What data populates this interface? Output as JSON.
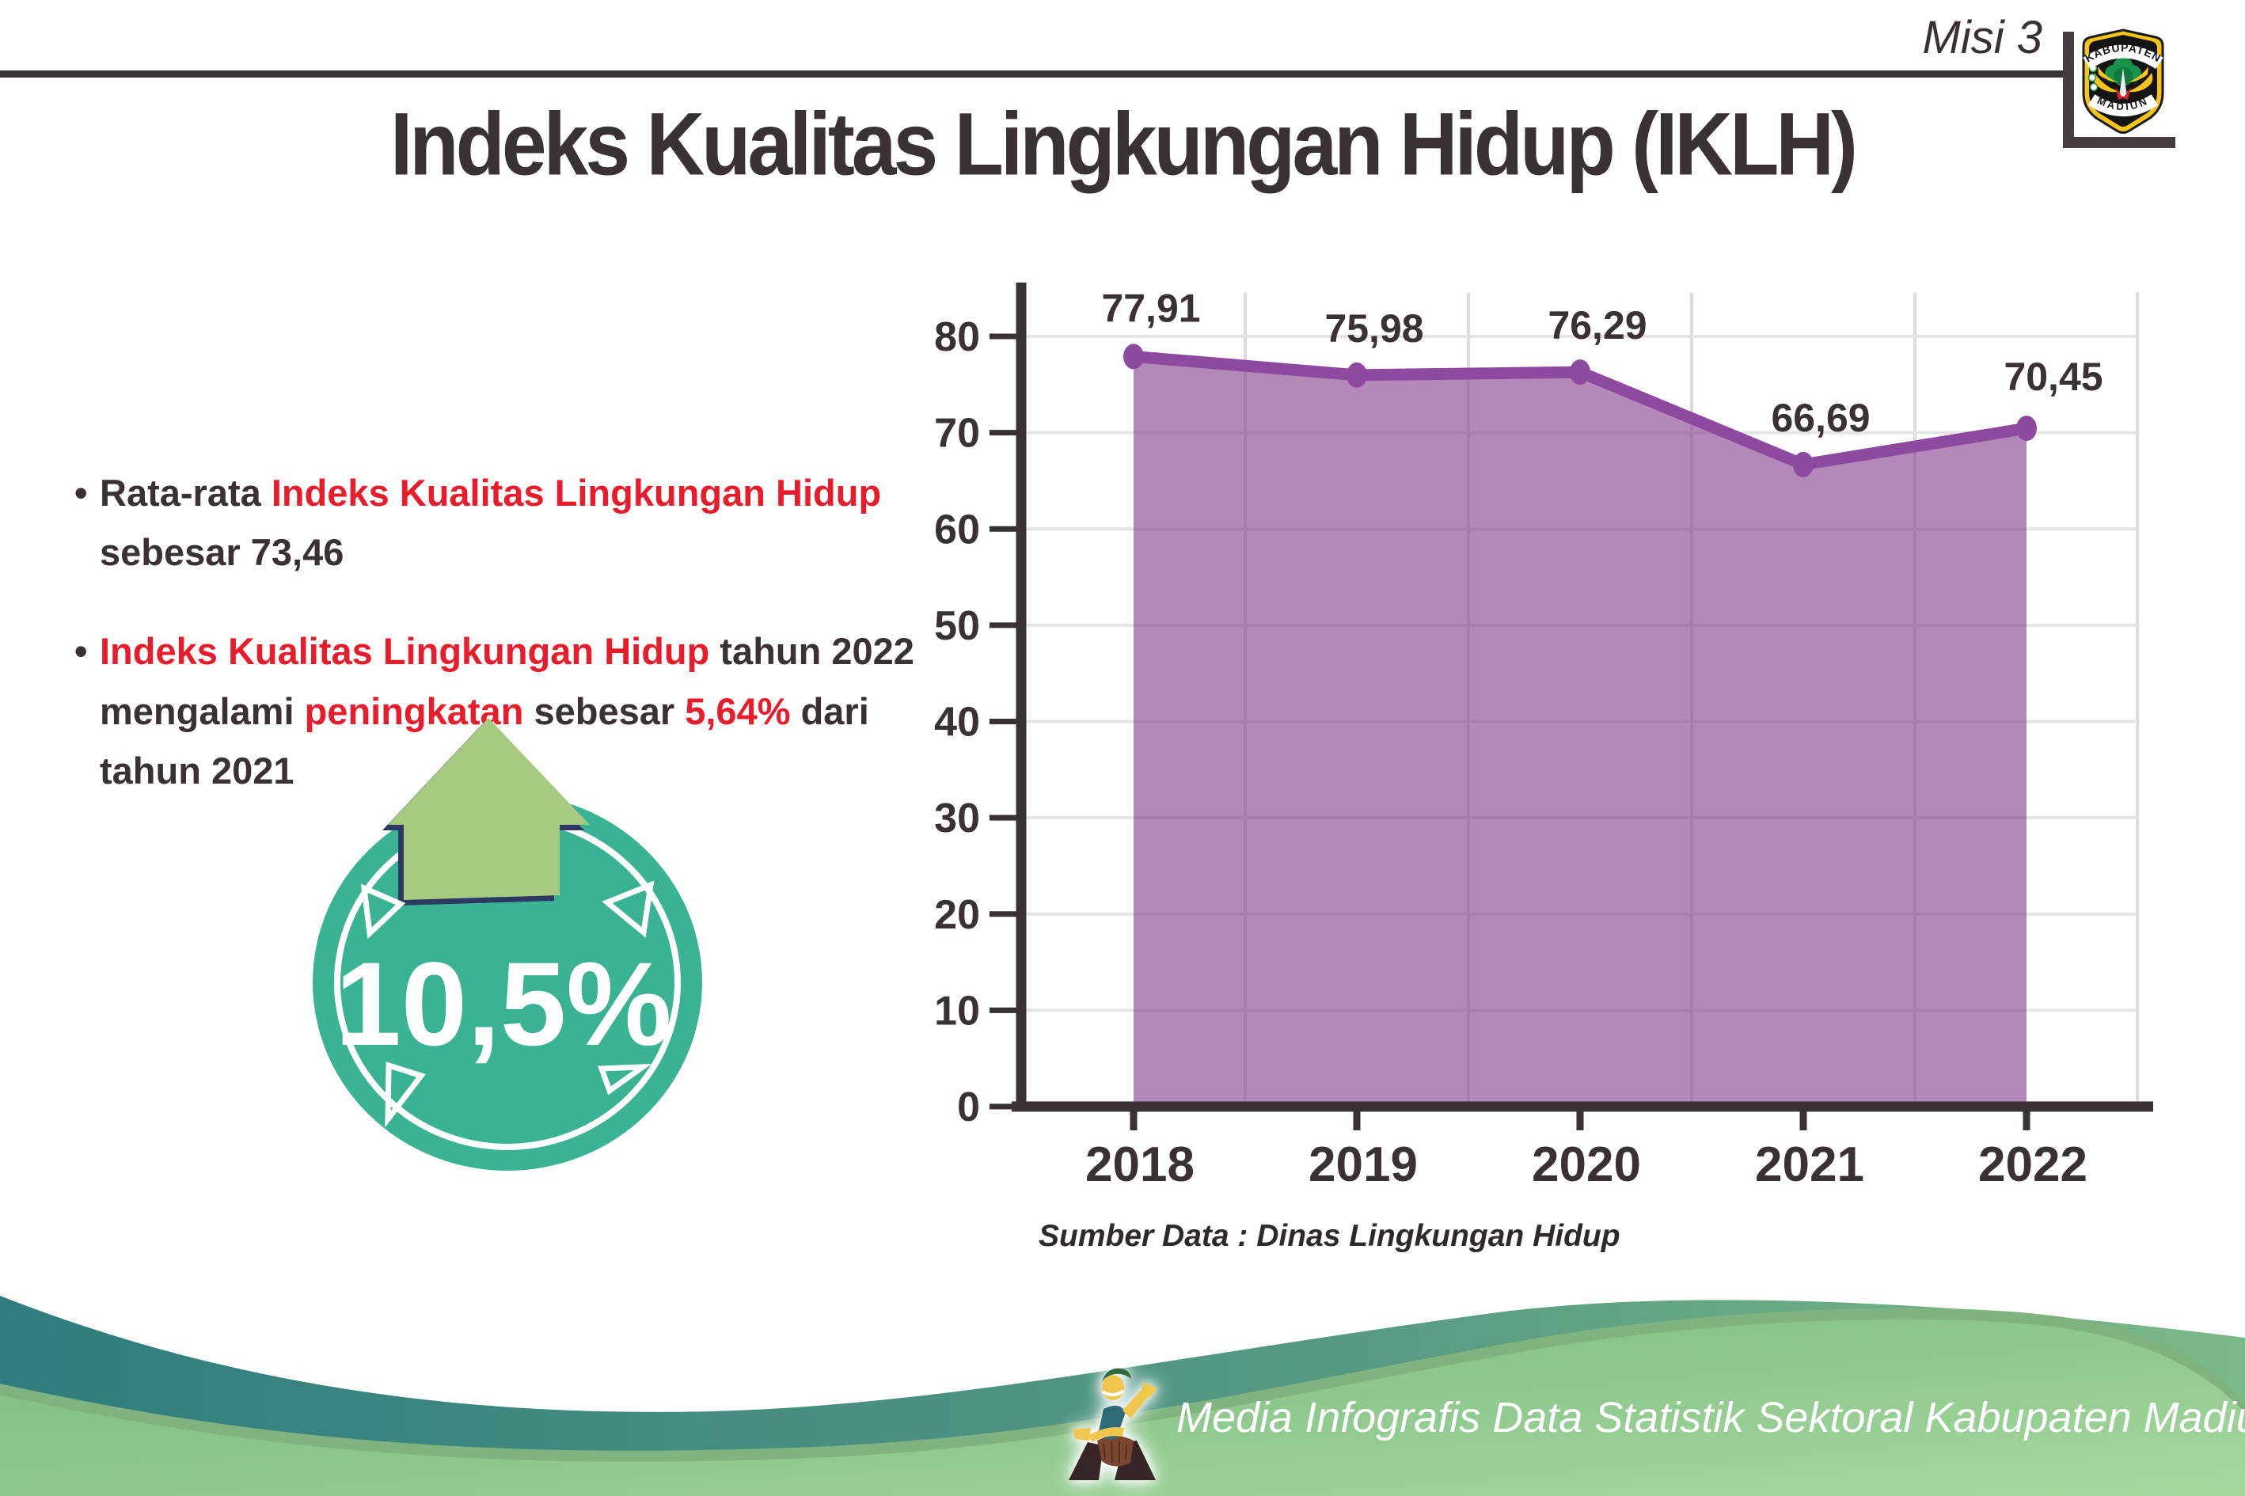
{
  "header": {
    "misi": "Misi 3",
    "title": "Indeks Kualitas Lingkungan Hidup (IKLH)"
  },
  "logo": {
    "top_text": "KABUPATEN",
    "bottom_text": "MADIUN"
  },
  "bullets": [
    {
      "lines": [
        [
          {
            "text": "Rata-rata ",
            "color": "dark"
          },
          {
            "text": "Indeks Kualitas Lingkungan Hidup",
            "color": "red"
          }
        ],
        [
          {
            "text": "sebesar 73,46",
            "color": "dark"
          }
        ]
      ]
    },
    {
      "lines": [
        [
          {
            "text": "Indeks Kualitas Lingkungan Hidup",
            "color": "red"
          },
          {
            "text": " tahun 2022",
            "color": "dark"
          }
        ],
        [
          {
            "text": "mengalami ",
            "color": "dark"
          },
          {
            "text": "peningkatan",
            "color": "red"
          },
          {
            "text": " sebesar ",
            "color": "dark"
          },
          {
            "text": "5,64%",
            "color": "red"
          },
          {
            "text": " dari",
            "color": "dark"
          }
        ],
        [
          {
            "text": "tahun 2021",
            "color": "dark"
          }
        ]
      ]
    }
  ],
  "badge": {
    "value": "10,5%"
  },
  "chart_data": {
    "type": "area",
    "categories": [
      "2018",
      "2019",
      "2020",
      "2021",
      "2022"
    ],
    "values": [
      77.91,
      75.98,
      76.29,
      66.69,
      70.45
    ],
    "value_labels": [
      "77,91",
      "75,98",
      "76,29",
      "66,69",
      "70,45"
    ],
    "title": "",
    "xlabel": "",
    "ylabel": "",
    "ylim": [
      0,
      80
    ],
    "yticks": [
      0,
      10,
      20,
      30,
      40,
      50,
      60,
      70,
      80
    ],
    "grid": true,
    "legend": false,
    "line_color": "#8e4a9e",
    "fill_color": "rgba(132,64,143,0.62)",
    "source_note": "Sumber Data : Dinas Lingkungan Hidup"
  },
  "footer": {
    "caption": "Media Infografis Data Statistik Sektoral Kabupaten Madiun |"
  },
  "colors": {
    "dark_text": "#3a3133",
    "red_text": "#e91c2b",
    "purple_line": "#8e4a9e",
    "teal_circle": "#3ab394",
    "arrow_green": "#a6cb80",
    "arrow_outline": "#2c3a63",
    "footer_teal": "#2f7d7e",
    "footer_green": "#8cc48c"
  }
}
